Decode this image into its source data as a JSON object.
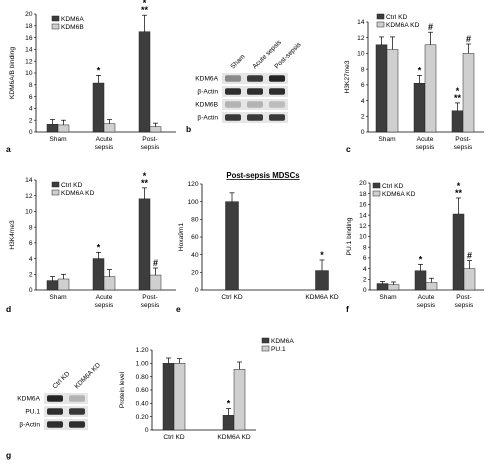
{
  "colors": {
    "dark": "#3d3d3d",
    "light": "#cfcfcf",
    "blot": "#1a1a1a"
  },
  "panel_letters": [
    "a",
    "b",
    "c",
    "d",
    "e",
    "f",
    "g"
  ],
  "chart_data": [
    {
      "id": "a",
      "type": "bar",
      "ylabel": "KDM6A/B binding",
      "ylim": [
        0,
        20
      ],
      "yticks": [
        0,
        2,
        4,
        6,
        8,
        10,
        12,
        14,
        16,
        18,
        20
      ],
      "categories": [
        "Sham",
        "Acute\nsepsis",
        "Post-\nsepsis"
      ],
      "legend": [
        "KDM6A",
        "KDM6B"
      ],
      "series": [
        {
          "name": "KDM6A",
          "values": [
            1.3,
            8.3,
            17.0
          ],
          "errors": [
            0.8,
            1.3,
            2.8
          ],
          "annot": [
            "",
            "*",
            "*\n**"
          ]
        },
        {
          "name": "KDM6B",
          "values": [
            1.2,
            1.4,
            0.9
          ],
          "errors": [
            0.8,
            0.7,
            0.6
          ],
          "annot": [
            "",
            "",
            ""
          ]
        }
      ]
    },
    {
      "id": "c",
      "type": "bar",
      "ylabel": "H3K27me3",
      "ylim": [
        0,
        14
      ],
      "yticks": [
        0,
        2,
        4,
        6,
        8,
        10,
        12,
        14
      ],
      "categories": [
        "Sham",
        "Acute\nsepsis",
        "Post-\nsepsis"
      ],
      "legend": [
        "Ctrl KD",
        "KDM6A KD"
      ],
      "series": [
        {
          "name": "Ctrl KD",
          "values": [
            11.1,
            6.2,
            2.7
          ],
          "errors": [
            1.0,
            1.0,
            1.0
          ],
          "annot": [
            "",
            "*",
            "*\n**"
          ]
        },
        {
          "name": "KDM6A KD",
          "values": [
            10.5,
            11.1,
            10.0
          ],
          "errors": [
            1.6,
            1.6,
            1.2
          ],
          "annot": [
            "",
            "#",
            "#"
          ]
        }
      ]
    },
    {
      "id": "d",
      "type": "bar",
      "ylabel": "H3K4me3",
      "ylim": [
        0,
        14
      ],
      "yticks": [
        0,
        2,
        4,
        6,
        8,
        10,
        12,
        14
      ],
      "categories": [
        "Sham",
        "Acute\nsepsis",
        "Post-\nsepsis"
      ],
      "legend": [
        "Ctrl KD",
        "KDM6A KD"
      ],
      "series": [
        {
          "name": "Ctrl KD",
          "values": [
            1.2,
            4.0,
            11.6
          ],
          "errors": [
            0.5,
            0.8,
            1.4
          ],
          "annot": [
            "",
            "*",
            "*\n**"
          ]
        },
        {
          "name": "KDM6A KD",
          "values": [
            1.4,
            1.7,
            1.9
          ],
          "errors": [
            0.6,
            0.9,
            0.9
          ],
          "annot": [
            "",
            "",
            "#"
          ]
        }
      ]
    },
    {
      "id": "e",
      "type": "bar",
      "title": "Post-sepsis MDSCs",
      "ylabel": "Hoxa9m1",
      "ylim": [
        0,
        120
      ],
      "yticks": [
        0,
        20,
        40,
        60,
        80,
        100,
        120
      ],
      "categories": [
        "Ctrl KD",
        "KDM6A KD"
      ],
      "legend": [],
      "series": [
        {
          "name": "",
          "values": [
            100,
            22
          ],
          "errors": [
            10,
            12
          ],
          "annot": [
            "",
            "*"
          ]
        }
      ]
    },
    {
      "id": "f",
      "type": "bar",
      "ylabel": "PU.1 binding",
      "ylim": [
        0,
        20
      ],
      "yticks": [
        0,
        2,
        4,
        6,
        8,
        10,
        12,
        14,
        16,
        18,
        20
      ],
      "categories": [
        "Sham",
        "Acute\nsepsis",
        "Post-\nsepsis"
      ],
      "legend": [
        "Ctrl KD",
        "KDM6A KD"
      ],
      "series": [
        {
          "name": "Ctrl KD",
          "values": [
            1.2,
            3.6,
            14.2
          ],
          "errors": [
            0.4,
            1.2,
            3.0
          ],
          "annot": [
            "",
            "*",
            "*\n**"
          ]
        },
        {
          "name": "KDM6A KD",
          "values": [
            1.0,
            1.4,
            4.0
          ],
          "errors": [
            0.5,
            0.8,
            1.5
          ],
          "annot": [
            "",
            "",
            "#"
          ]
        }
      ]
    },
    {
      "id": "g",
      "type": "bar",
      "ylabel": "Protein level",
      "ylim": [
        0,
        1.2
      ],
      "yticks": [
        "0",
        "0.20",
        "0.40",
        "0.60",
        "0.80",
        "1.00",
        "1.20"
      ],
      "categories": [
        "Ctrl KD",
        "KDM6A KD"
      ],
      "legend": [
        "KDM6A",
        "PU.1"
      ],
      "series": [
        {
          "name": "KDM6A",
          "values": [
            1.0,
            0.22
          ],
          "errors": [
            0.08,
            0.1
          ],
          "annot": [
            "",
            "*"
          ]
        },
        {
          "name": "PU.1",
          "values": [
            1.0,
            0.91
          ],
          "errors": [
            0.07,
            0.11
          ],
          "annot": [
            "",
            ""
          ]
        }
      ]
    }
  ],
  "blot_b": {
    "columns": [
      "Sham",
      "Acute sepsis",
      "Post-sepsis"
    ],
    "rows": [
      "KDM6A",
      "β-Actin",
      "KDM6B",
      "β-Actin"
    ]
  },
  "blot_g": {
    "columns": [
      "Ctrl KD",
      "KDM6A KD"
    ],
    "rows": [
      "KDM6A",
      "PU.1",
      "β-Actin"
    ]
  }
}
